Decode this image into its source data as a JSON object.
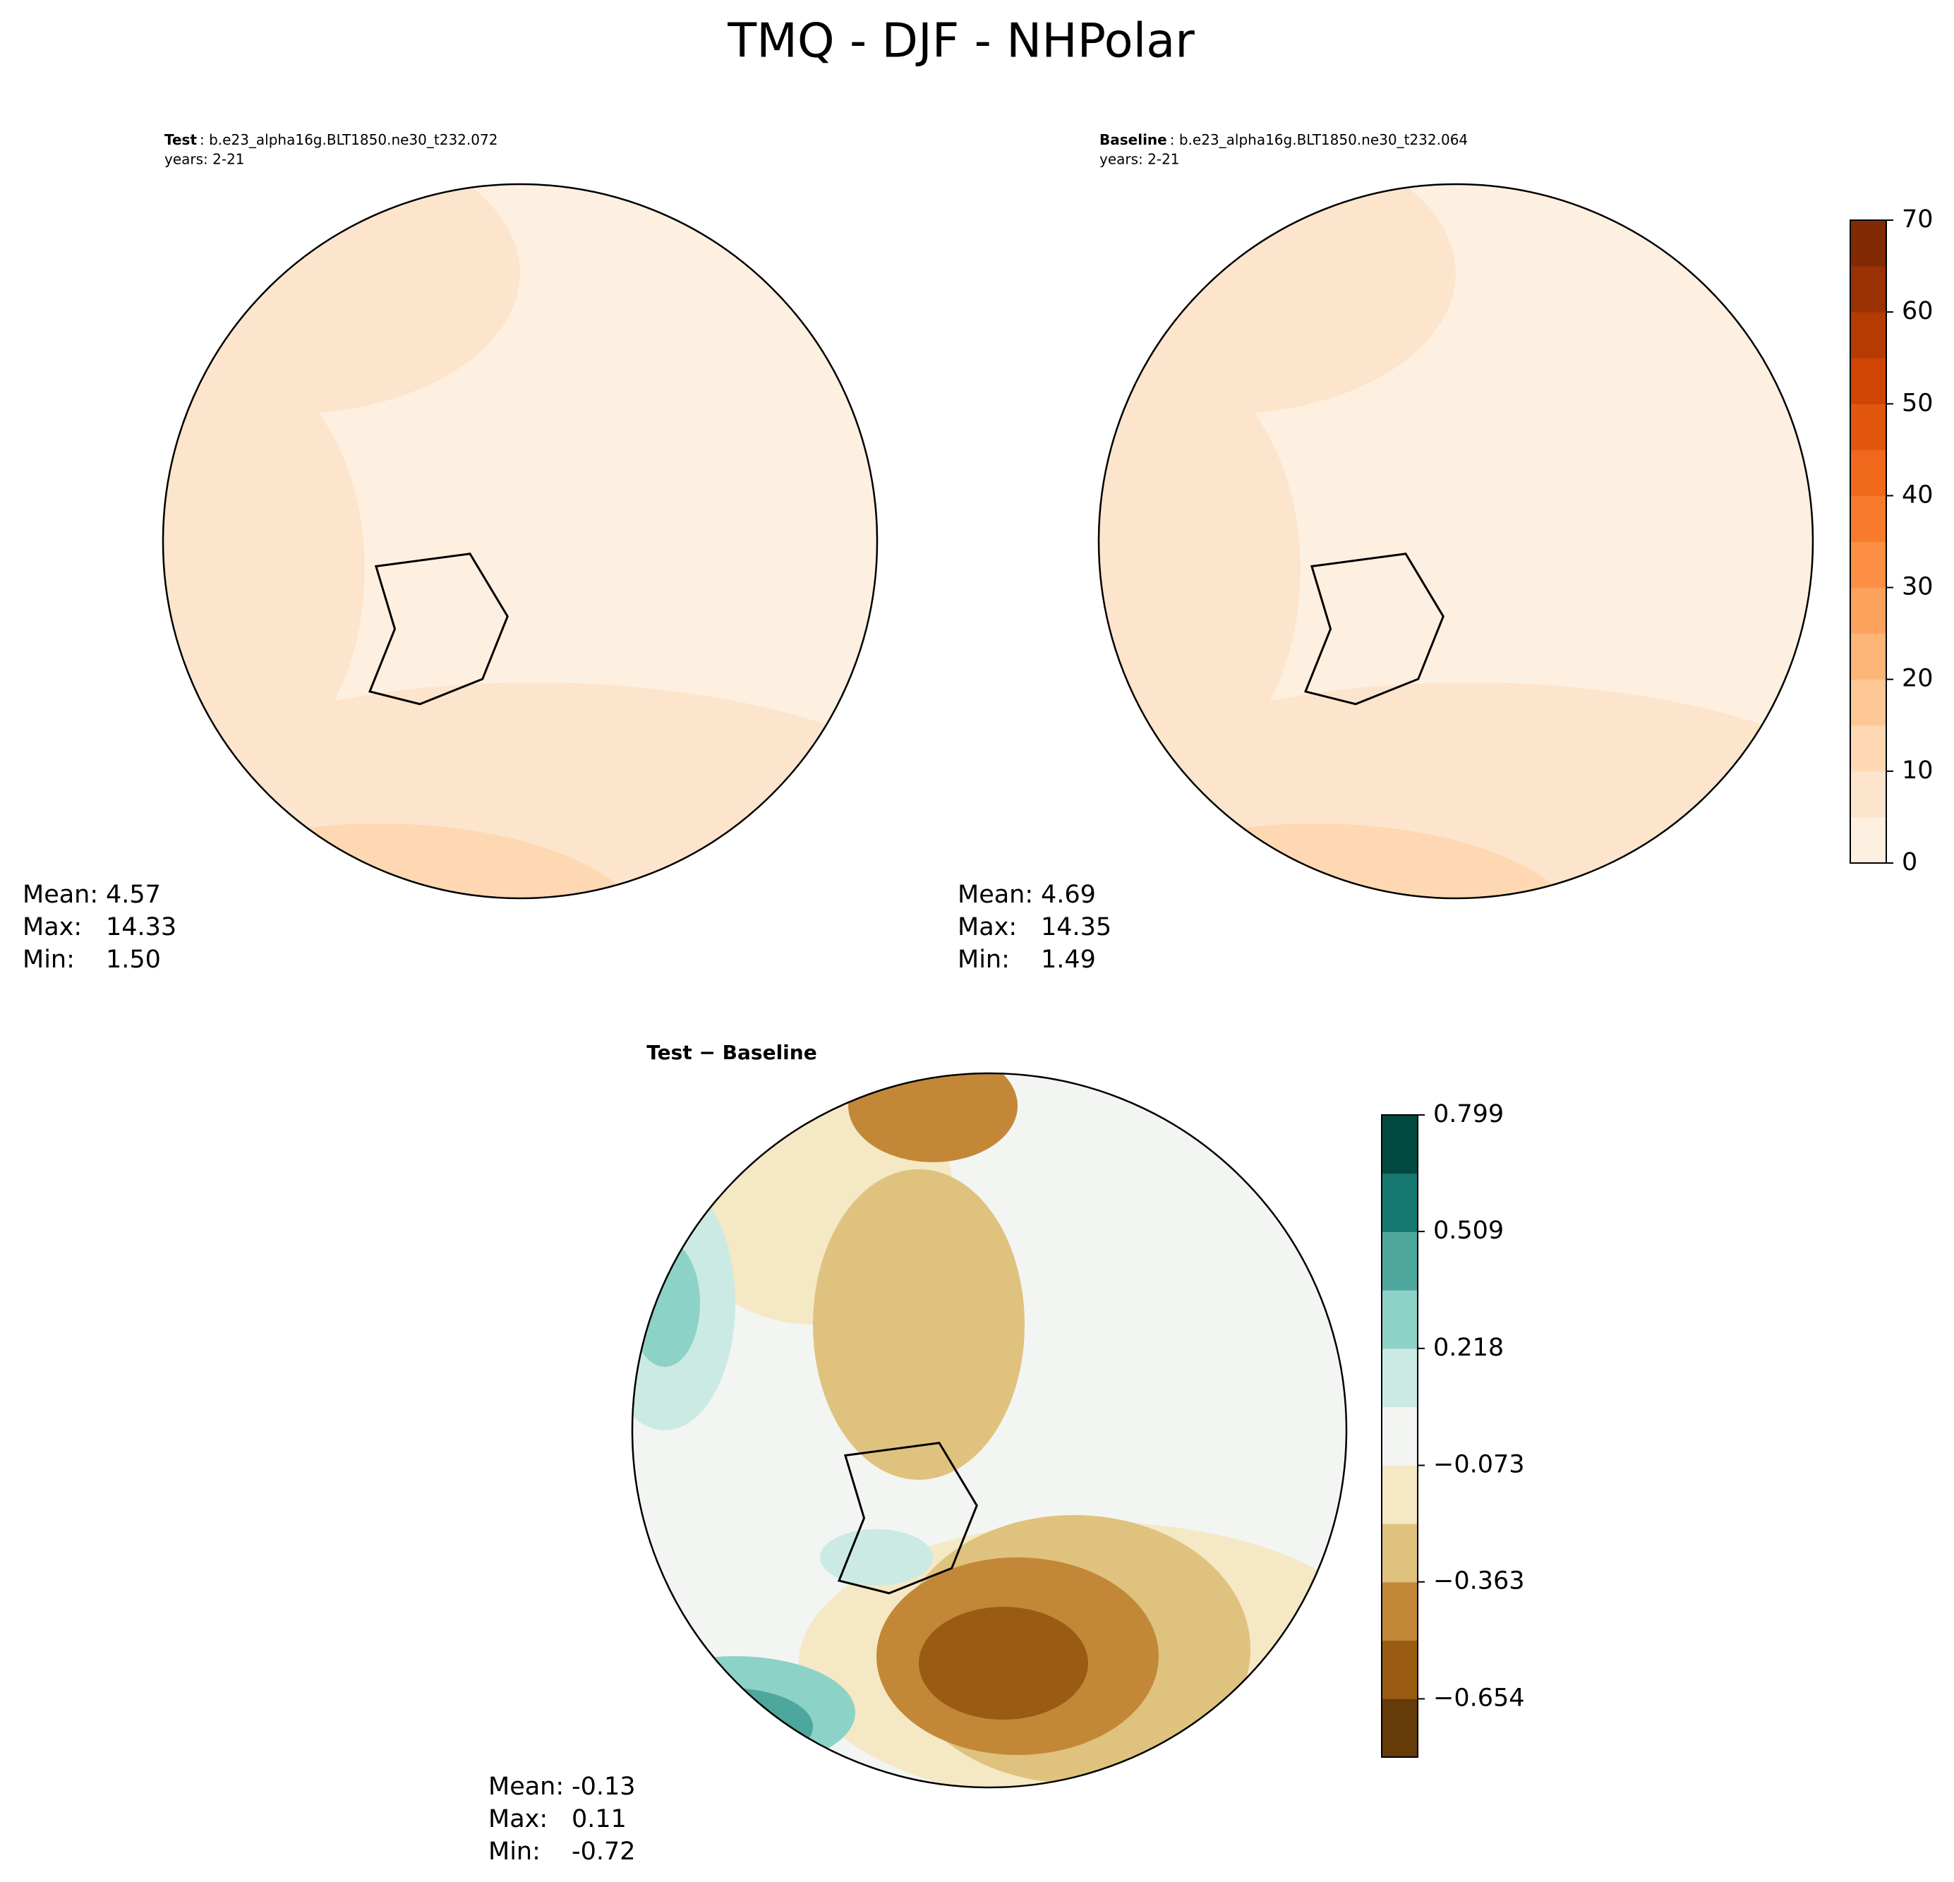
{
  "figure": {
    "title": "TMQ - DJF - NHPolar",
    "panels": [
      {
        "label": "Test",
        "case": ": b.e23_alpha16g.BLT1850.ne30_t232.072",
        "years": "years: 2-21",
        "stats": [
          {
            "label": "Mean:",
            "value": "4.57"
          },
          {
            "label": "Max:",
            "value": "14.33"
          },
          {
            "label": "Min:",
            "value": "1.50"
          }
        ]
      },
      {
        "label": "Baseline",
        "case": ": b.e23_alpha16g.BLT1850.ne30_t232.064",
        "years": "years: 2-21",
        "stats": [
          {
            "label": "Mean:",
            "value": "4.69"
          },
          {
            "label": "Max:",
            "value": "14.35"
          },
          {
            "label": "Min:",
            "value": "1.49"
          }
        ]
      },
      {
        "label": "Test − Baseline",
        "stats": [
          {
            "label": "Mean:",
            "value": "-0.13"
          },
          {
            "label": "Max:",
            "value": "0.11"
          },
          {
            "label": "Min:",
            "value": "-0.72"
          }
        ]
      }
    ],
    "colorbars": [
      {
        "lim": [
          0,
          70
        ],
        "ticks": [
          0,
          10,
          20,
          30,
          40,
          50,
          60,
          70
        ],
        "colors": [
          "#fef0e1",
          "#fde5cd",
          "#fdd8b3",
          "#fdc895",
          "#fdb677",
          "#fda25d",
          "#fd8f44",
          "#f87b2d",
          "#f0681b",
          "#e3560e",
          "#d04503",
          "#b53b03",
          "#9a3203",
          "#822a04"
        ]
      },
      {
        "lim": [
          -0.799,
          0.799
        ],
        "ticks": [
          {
            "value": -0.654,
            "label": "−0.654"
          },
          {
            "value": -0.363,
            "label": "−0.363"
          },
          {
            "value": -0.073,
            "label": "−0.073"
          },
          0.218,
          0.509,
          0.799
        ],
        "colors": [
          "#643b09",
          "#9a5c12",
          "#c28838",
          "#dfc27d",
          "#f5e8c4",
          "#f3f5f3",
          "#cbeae4",
          "#8dd2c6",
          "#4ea79d",
          "#167870",
          "#02493f"
        ]
      }
    ]
  }
}
